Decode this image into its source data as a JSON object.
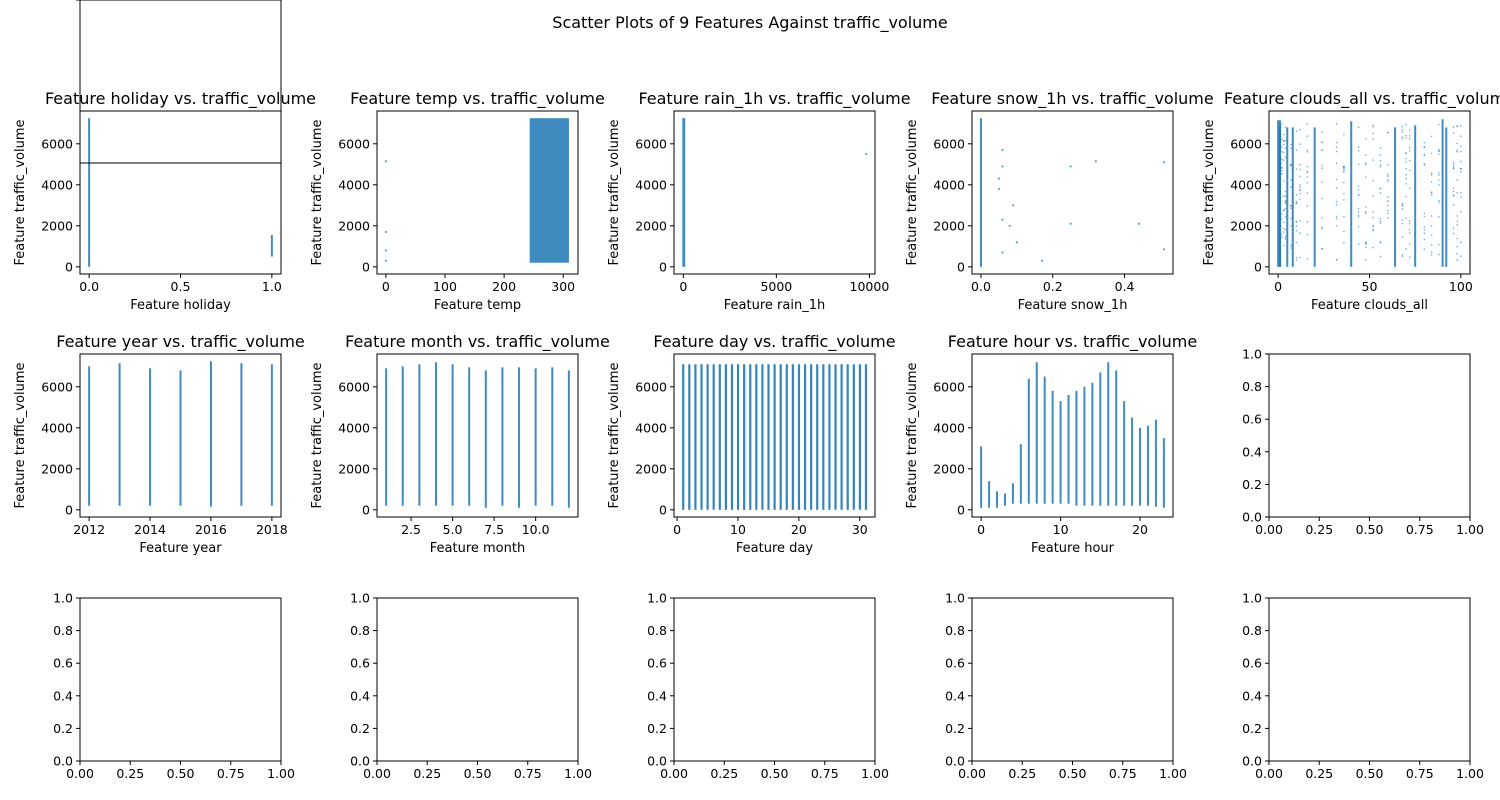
{
  "suptitle": "Scatter Plots of 9 Features Against traffic_volume",
  "colors": {
    "point": "#1f77b4",
    "axis": "#000000",
    "background": "#ffffff"
  },
  "chart_data": [
    {
      "type": "scatter",
      "title": "Feature holiday vs. traffic_volume",
      "xlabel": "Feature holiday",
      "ylabel": "Feature traffic_volume",
      "xlim": [
        -0.05,
        1.05
      ],
      "ylim": [
        -350,
        7600
      ],
      "xticks": [
        0.0,
        0.5,
        1.0
      ],
      "xticklabels": [
        "0.0",
        "0.5",
        "1.0"
      ],
      "yticks": [
        0,
        2000,
        4000,
        6000
      ],
      "yticklabels": [
        "0",
        "2000",
        "4000",
        "6000"
      ],
      "series": [
        {
          "bands": [
            [
              0,
              0,
              0,
              7250
            ],
            [
              1,
              1,
              500,
              1550
            ]
          ]
        }
      ]
    },
    {
      "type": "scatter",
      "title": "Feature temp vs. traffic_volume",
      "xlabel": "Feature temp",
      "ylabel": "Feature traffic_volume",
      "xlim": [
        -15,
        325
      ],
      "ylim": [
        -350,
        7600
      ],
      "xticks": [
        0,
        100,
        200,
        300
      ],
      "xticklabels": [
        "0",
        "100",
        "200",
        "300"
      ],
      "yticks": [
        0,
        2000,
        4000,
        6000
      ],
      "yticklabels": [
        "0",
        "2000",
        "4000",
        "6000"
      ],
      "series": [
        {
          "bands": [
            [
              245,
              308,
              200,
              7250
            ]
          ],
          "points": [
            [
              0,
              5150
            ],
            [
              0,
              1700
            ],
            [
              0,
              800
            ],
            [
              0,
              300
            ]
          ]
        }
      ]
    },
    {
      "type": "scatter",
      "title": "Feature rain_1h vs. traffic_volume",
      "xlabel": "Feature rain_1h",
      "ylabel": "Feature traffic_volume",
      "xlim": [
        -500,
        10300
      ],
      "ylim": [
        -350,
        7600
      ],
      "xticks": [
        0,
        5000,
        10000
      ],
      "xticklabels": [
        "0",
        "5000",
        "10000"
      ],
      "yticks": [
        0,
        2000,
        4000,
        6000
      ],
      "yticklabels": [
        "0",
        "2000",
        "4000",
        "6000"
      ],
      "series": [
        {
          "bands": [
            [
              0,
              50,
              0,
              7250
            ]
          ],
          "points": [
            [
              9830,
              5500
            ]
          ]
        }
      ]
    },
    {
      "type": "scatter",
      "title": "Feature snow_1h vs. traffic_volume",
      "xlabel": "Feature snow_1h",
      "ylabel": "Feature traffic_volume",
      "xlim": [
        -0.025,
        0.535
      ],
      "ylim": [
        -350,
        7600
      ],
      "xticks": [
        0.0,
        0.2,
        0.4
      ],
      "xticklabels": [
        "0.0",
        "0.2",
        "0.4"
      ],
      "yticks": [
        0,
        2000,
        4000,
        6000
      ],
      "yticklabels": [
        "0",
        "2000",
        "4000",
        "6000"
      ],
      "series": [
        {
          "bands": [
            [
              0,
              0,
              0,
              7250
            ]
          ],
          "points": [
            [
              0.05,
              4300
            ],
            [
              0.06,
              5700
            ],
            [
              0.06,
              4900
            ],
            [
              0.05,
              3800
            ],
            [
              0.06,
              2300
            ],
            [
              0.08,
              2000
            ],
            [
              0.09,
              3000
            ],
            [
              0.1,
              1200
            ],
            [
              0.06,
              700
            ],
            [
              0.17,
              300
            ],
            [
              0.25,
              2100
            ],
            [
              0.25,
              4900
            ],
            [
              0.32,
              5150
            ],
            [
              0.44,
              2100
            ],
            [
              0.51,
              5100
            ],
            [
              0.51,
              850
            ]
          ]
        }
      ]
    },
    {
      "type": "scatter",
      "title": "Feature clouds_all vs. traffic_volume",
      "xlabel": "Feature clouds_all",
      "ylabel": "Feature traffic_volume",
      "xlim": [
        -5,
        105
      ],
      "ylim": [
        -350,
        7600
      ],
      "xticks": [
        0,
        50,
        100
      ],
      "xticklabels": [
        "0",
        "50",
        "100"
      ],
      "yticks": [
        0,
        2000,
        4000,
        6000
      ],
      "yticklabels": [
        "0",
        "2000",
        "4000",
        "6000"
      ],
      "series": [
        {
          "bands": [
            [
              0,
              1,
              0,
              7150
            ],
            [
              40,
              40,
              0,
              7100
            ],
            [
              75,
              75,
              0,
              6900
            ],
            [
              90,
              90,
              0,
              7200
            ],
            [
              92,
              92,
              0,
              6800
            ],
            [
              1,
              1,
              0,
              6900
            ],
            [
              5,
              5,
              0,
              6800
            ],
            [
              8,
              8,
              0,
              6800
            ],
            [
              20,
              20,
              0,
              6800
            ],
            [
              64,
              64,
              0,
              6800
            ]
          ],
          "sparse_cols": [
            2,
            3,
            4,
            7,
            10,
            12,
            16,
            24,
            32,
            36,
            44,
            48,
            52,
            56,
            60,
            68,
            70,
            72,
            80,
            84,
            88,
            96,
            98,
            100
          ]
        }
      ]
    },
    {
      "type": "scatter",
      "title": "Feature year vs. traffic_volume",
      "xlabel": "Feature year",
      "ylabel": "Feature traffic_volume",
      "xlim": [
        2011.7,
        2018.3
      ],
      "ylim": [
        -350,
        7600
      ],
      "xticks": [
        2012,
        2014,
        2016,
        2018
      ],
      "xticklabels": [
        "2012",
        "2014",
        "2016",
        "2018"
      ],
      "yticks": [
        0,
        2000,
        4000,
        6000
      ],
      "yticklabels": [
        "0",
        "2000",
        "4000",
        "6000"
      ],
      "series": [
        {
          "bands": [
            [
              2012,
              2012,
              200,
              7000
            ],
            [
              2013,
              2013,
              200,
              7150
            ],
            [
              2014,
              2014,
              200,
              6900
            ],
            [
              2015,
              2015,
              200,
              6800
            ],
            [
              2016,
              2016,
              150,
              7250
            ],
            [
              2017,
              2017,
              200,
              7150
            ],
            [
              2018,
              2018,
              200,
              7100
            ]
          ]
        }
      ]
    },
    {
      "type": "scatter",
      "title": "Feature month vs. traffic_volume",
      "xlabel": "Feature month",
      "ylabel": "Feature traffic_volume",
      "xlim": [
        0.45,
        12.55
      ],
      "ylim": [
        -350,
        7600
      ],
      "xticks": [
        2.5,
        5.0,
        7.5,
        10.0
      ],
      "xticklabels": [
        "2.5",
        "5.0",
        "7.5",
        "10.0"
      ],
      "yticks": [
        0,
        2000,
        4000,
        6000
      ],
      "yticklabels": [
        "0",
        "2000",
        "4000",
        "6000"
      ],
      "series": [
        {
          "bands": [
            [
              1,
              1,
              200,
              6900
            ],
            [
              2,
              2,
              200,
              7000
            ],
            [
              3,
              3,
              200,
              7100
            ],
            [
              4,
              4,
              200,
              7200
            ],
            [
              5,
              5,
              200,
              7100
            ],
            [
              6,
              6,
              200,
              6950
            ],
            [
              7,
              7,
              100,
              6800
            ],
            [
              8,
              8,
              200,
              6950
            ],
            [
              9,
              9,
              100,
              6950
            ],
            [
              10,
              10,
              200,
              6900
            ],
            [
              11,
              11,
              200,
              6950
            ],
            [
              12,
              12,
              100,
              6800
            ]
          ]
        }
      ]
    },
    {
      "type": "scatter",
      "title": "Feature day vs. traffic_volume",
      "xlabel": "Feature day",
      "ylabel": "Feature traffic_volume",
      "xlim": [
        -0.5,
        32.5
      ],
      "ylim": [
        -350,
        7600
      ],
      "xticks": [
        0,
        10,
        20,
        30
      ],
      "xticklabels": [
        "0",
        "10",
        "20",
        "30"
      ],
      "yticks": [
        0,
        2000,
        4000,
        6000
      ],
      "yticklabels": [
        "0",
        "2000",
        "4000",
        "6000"
      ],
      "series": [
        {
          "day_columns": [
            1,
            31,
            0,
            7100
          ]
        }
      ]
    },
    {
      "type": "scatter",
      "title": "Feature hour vs. traffic_volume",
      "xlabel": "Feature hour",
      "ylabel": "Feature traffic_volume",
      "xlim": [
        -1.15,
        24.15
      ],
      "ylim": [
        -350,
        7600
      ],
      "xticks": [
        0,
        10,
        20
      ],
      "xticklabels": [
        "0",
        "10",
        "20"
      ],
      "yticks": [
        0,
        2000,
        4000,
        6000
      ],
      "yticklabels": [
        "0",
        "2000",
        "4000",
        "6000"
      ],
      "series": [
        {
          "bands": [
            [
              0,
              0,
              100,
              3100
            ],
            [
              1,
              1,
              100,
              1400
            ],
            [
              2,
              2,
              100,
              900
            ],
            [
              3,
              3,
              200,
              800
            ],
            [
              4,
              4,
              300,
              1300
            ],
            [
              5,
              5,
              300,
              3200
            ],
            [
              6,
              6,
              300,
              6400
            ],
            [
              7,
              7,
              300,
              7200
            ],
            [
              8,
              8,
              300,
              6500
            ],
            [
              9,
              9,
              300,
              5800
            ],
            [
              10,
              10,
              300,
              5300
            ],
            [
              11,
              11,
              300,
              5600
            ],
            [
              12,
              12,
              200,
              5800
            ],
            [
              13,
              13,
              200,
              6000
            ],
            [
              14,
              14,
              200,
              6200
            ],
            [
              15,
              15,
              200,
              6700
            ],
            [
              16,
              16,
              200,
              7200
            ],
            [
              17,
              17,
              200,
              6800
            ],
            [
              18,
              18,
              200,
              5300
            ],
            [
              19,
              19,
              200,
              4500
            ],
            [
              20,
              20,
              200,
              4000
            ],
            [
              21,
              21,
              200,
              4100
            ],
            [
              22,
              22,
              150,
              4400
            ],
            [
              23,
              23,
              100,
              3500
            ]
          ]
        }
      ]
    },
    {
      "type": "empty",
      "xlim": [
        0,
        1
      ],
      "ylim": [
        0,
        1
      ],
      "xticks": [
        0,
        0.25,
        0.5,
        0.75,
        1.0
      ],
      "xticklabels": [
        "0.00",
        "0.25",
        "0.50",
        "0.75",
        "1.00"
      ],
      "yticks": [
        0,
        0.2,
        0.4,
        0.6,
        0.8,
        1.0
      ],
      "yticklabels": [
        "0.0",
        "0.2",
        "0.4",
        "0.6",
        "0.8",
        "1.0"
      ]
    },
    {
      "type": "empty",
      "xlim": [
        0,
        1
      ],
      "ylim": [
        0,
        1
      ],
      "xticks": [
        0,
        0.25,
        0.5,
        0.75,
        1.0
      ],
      "xticklabels": [
        "0.00",
        "0.25",
        "0.50",
        "0.75",
        "1.00"
      ],
      "yticks": [
        0,
        0.2,
        0.4,
        0.6,
        0.8,
        1.0
      ],
      "yticklabels": [
        "0.0",
        "0.2",
        "0.4",
        "0.6",
        "0.8",
        "1.0"
      ]
    },
    {
      "type": "empty",
      "xlim": [
        0,
        1
      ],
      "ylim": [
        0,
        1
      ],
      "xticks": [
        0,
        0.25,
        0.5,
        0.75,
        1.0
      ],
      "xticklabels": [
        "0.00",
        "0.25",
        "0.50",
        "0.75",
        "1.00"
      ],
      "yticks": [
        0,
        0.2,
        0.4,
        0.6,
        0.8,
        1.0
      ],
      "yticklabels": [
        "0.0",
        "0.2",
        "0.4",
        "0.6",
        "0.8",
        "1.0"
      ]
    },
    {
      "type": "empty",
      "xlim": [
        0,
        1
      ],
      "ylim": [
        0,
        1
      ],
      "xticks": [
        0,
        0.25,
        0.5,
        0.75,
        1.0
      ],
      "xticklabels": [
        "0.00",
        "0.25",
        "0.50",
        "0.75",
        "1.00"
      ],
      "yticks": [
        0,
        0.2,
        0.4,
        0.6,
        0.8,
        1.0
      ],
      "yticklabels": [
        "0.0",
        "0.2",
        "0.4",
        "0.6",
        "0.8",
        "1.0"
      ]
    },
    {
      "type": "empty",
      "xlim": [
        0,
        1
      ],
      "ylim": [
        0,
        1
      ],
      "xticks": [
        0,
        0.25,
        0.5,
        0.75,
        1.0
      ],
      "xticklabels": [
        "0.00",
        "0.25",
        "0.50",
        "0.75",
        "1.00"
      ],
      "yticks": [
        0,
        0.2,
        0.4,
        0.6,
        0.8,
        1.0
      ],
      "yticklabels": [
        "0.0",
        "0.2",
        "0.4",
        "0.6",
        "0.8",
        "1.0"
      ]
    },
    {
      "type": "empty",
      "xlim": [
        0,
        1
      ],
      "ylim": [
        0,
        1
      ],
      "xticks": [
        0,
        0.25,
        0.5,
        0.75,
        1.0
      ],
      "xticklabels": [
        "0.00",
        "0.25",
        "0.50",
        "0.75",
        "1.00"
      ],
      "yticks": [
        0,
        0.2,
        0.4,
        0.6,
        0.8,
        1.0
      ],
      "yticklabels": [
        "0.0",
        "0.2",
        "0.4",
        "0.6",
        "0.8",
        "1.0"
      ]
    },
    {
      "type": "empty",
      "xlim": [
        0,
        1
      ],
      "ylim": [
        0,
        1
      ],
      "xticks": [
        0,
        0.25,
        0.5,
        0.75,
        1.0
      ],
      "xticklabels": [
        "0.00",
        "0.25",
        "0.50",
        "0.75",
        "1.00"
      ],
      "yticks": [
        0,
        0.2,
        0.4,
        0.6,
        0.8,
        1.0
      ],
      "yticklabels": [
        "0.0",
        "0.2",
        "0.4",
        "0.6",
        "0.8",
        "1.0"
      ]
    }
  ]
}
